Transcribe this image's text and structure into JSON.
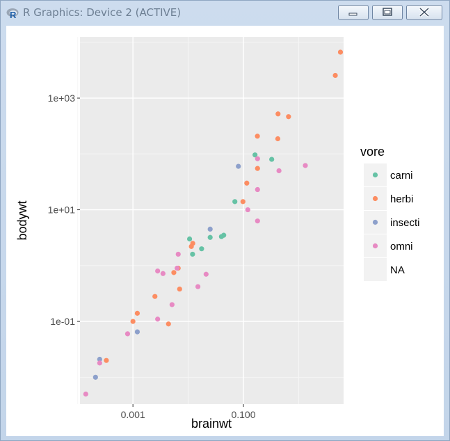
{
  "window": {
    "title": "R Graphics: Device 2 (ACTIVE)",
    "icon": "r-logo-icon",
    "controls": [
      "minimize-icon",
      "maximize-icon",
      "close-icon"
    ]
  },
  "chart_data": {
    "type": "scatter",
    "xlabel": "brainwt",
    "ylabel": "bodywt",
    "x_scale": "log10",
    "y_scale": "log10",
    "xlim": [
      0.00011,
      6.5
    ],
    "ylim": [
      0.0033,
      12500
    ],
    "x_ticks": [
      0.001,
      0.1
    ],
    "x_tick_labels": [
      "0.001",
      "0.100"
    ],
    "y_ticks": [
      0.1,
      10,
      1000
    ],
    "y_tick_labels": [
      "1e-01",
      "1e+01",
      "1e+03"
    ],
    "grid": true,
    "legend_position": "right",
    "legend": {
      "title": "vore",
      "entries": [
        {
          "label": "carni",
          "color": "#66C2A5"
        },
        {
          "label": "herbi",
          "color": "#FC8D62"
        },
        {
          "label": "insecti",
          "color": "#8DA0CB"
        },
        {
          "label": "omni",
          "color": "#E78AC3"
        },
        {
          "label": "NA",
          "color": null
        }
      ]
    },
    "series": [
      {
        "name": "carni",
        "color": "#66C2A5",
        "points": [
          [
            0.162,
            96
          ],
          [
            0.325,
            80
          ],
          [
            0.07,
            14
          ],
          [
            0.044,
            3.5
          ],
          [
            0.0106,
            3.0
          ],
          [
            0.012,
            1.6
          ],
          [
            0.025,
            3.2
          ],
          [
            0.0175,
            2.0
          ],
          [
            0.04,
            3.3
          ]
        ]
      },
      {
        "name": "herbi",
        "color": "#FC8D62",
        "points": [
          [
            4.6,
            2547
          ],
          [
            5.7,
            6654
          ],
          [
            0.423,
            521
          ],
          [
            0.655,
            465
          ],
          [
            0.179,
            208
          ],
          [
            0.419,
            187
          ],
          [
            0.18,
            55
          ],
          [
            0.115,
            30
          ],
          [
            0.098,
            14
          ],
          [
            0.0121,
            2.5
          ],
          [
            0.0114,
            2.2
          ],
          [
            0.0066,
            0.9
          ],
          [
            0.0055,
            0.75
          ],
          [
            0.007,
            0.38
          ],
          [
            0.0025,
            0.28
          ],
          [
            0.0012,
            0.14
          ],
          [
            0.001,
            0.1
          ],
          [
            0.0044,
            0.09
          ],
          [
            0.00033,
            0.02
          ]
        ]
      },
      {
        "name": "insecti",
        "color": "#8DA0CB",
        "points": [
          [
            0.081,
            60
          ],
          [
            0.025,
            4.5
          ],
          [
            0.0012,
            0.065
          ],
          [
            0.00025,
            0.021
          ],
          [
            0.00021,
            0.01
          ]
        ]
      },
      {
        "name": "omni",
        "color": "#E78AC3",
        "points": [
          [
            1.32,
            62
          ],
          [
            0.44,
            50
          ],
          [
            0.18,
            82
          ],
          [
            0.18,
            23
          ],
          [
            0.12,
            10
          ],
          [
            0.18,
            6.3
          ],
          [
            0.0063,
            0.9
          ],
          [
            0.0066,
            1.6
          ],
          [
            0.0035,
            0.72
          ],
          [
            0.0028,
            0.8
          ],
          [
            0.0211,
            0.7
          ],
          [
            0.015,
            0.42
          ],
          [
            0.0051,
            0.2
          ],
          [
            0.0028,
            0.11
          ],
          [
            0.0008,
            0.06
          ],
          [
            0.00025,
            0.018
          ],
          [
            0.00014,
            0.005
          ]
        ]
      }
    ]
  }
}
